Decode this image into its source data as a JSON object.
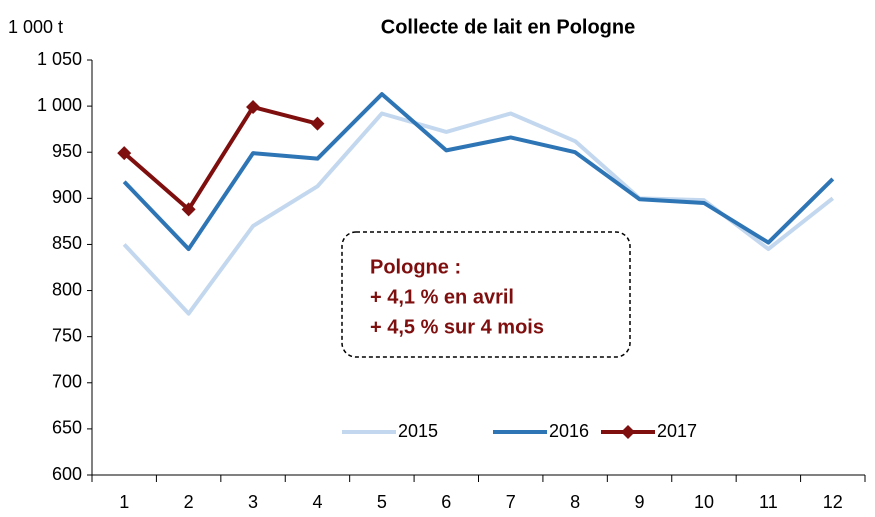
{
  "chart_data": {
    "type": "line",
    "title": "Collecte de lait en Pologne",
    "y_unit": "1 000 t",
    "categories": [
      "1",
      "2",
      "3",
      "4",
      "5",
      "6",
      "7",
      "8",
      "9",
      "10",
      "11",
      "12"
    ],
    "series": [
      {
        "name": "2015",
        "color": "#c3d8ee",
        "values": [
          850,
          775,
          870,
          913,
          992,
          972,
          992,
          962,
          900,
          898,
          845,
          900
        ]
      },
      {
        "name": "2016",
        "color": "#2e75b6",
        "values": [
          918,
          845,
          949,
          943,
          1013,
          952,
          966,
          950,
          899,
          895,
          852,
          921
        ]
      },
      {
        "name": "2017",
        "color": "#7f0f0f",
        "marker": "diamond",
        "values": [
          949,
          888,
          999,
          981,
          null,
          null,
          null,
          null,
          null,
          null,
          null,
          null
        ]
      }
    ],
    "ylim": [
      600,
      1050
    ],
    "yticks": [
      600,
      650,
      700,
      750,
      800,
      850,
      900,
      950,
      {
        "value": 1000,
        "label": "1 000"
      },
      {
        "value": 1050,
        "label": "1 050"
      }
    ],
    "annotation": [
      "Pologne :",
      "+ 4,1 % en avril",
      "+ 4,5 % sur 4 mois"
    ],
    "legend": "bottom"
  }
}
